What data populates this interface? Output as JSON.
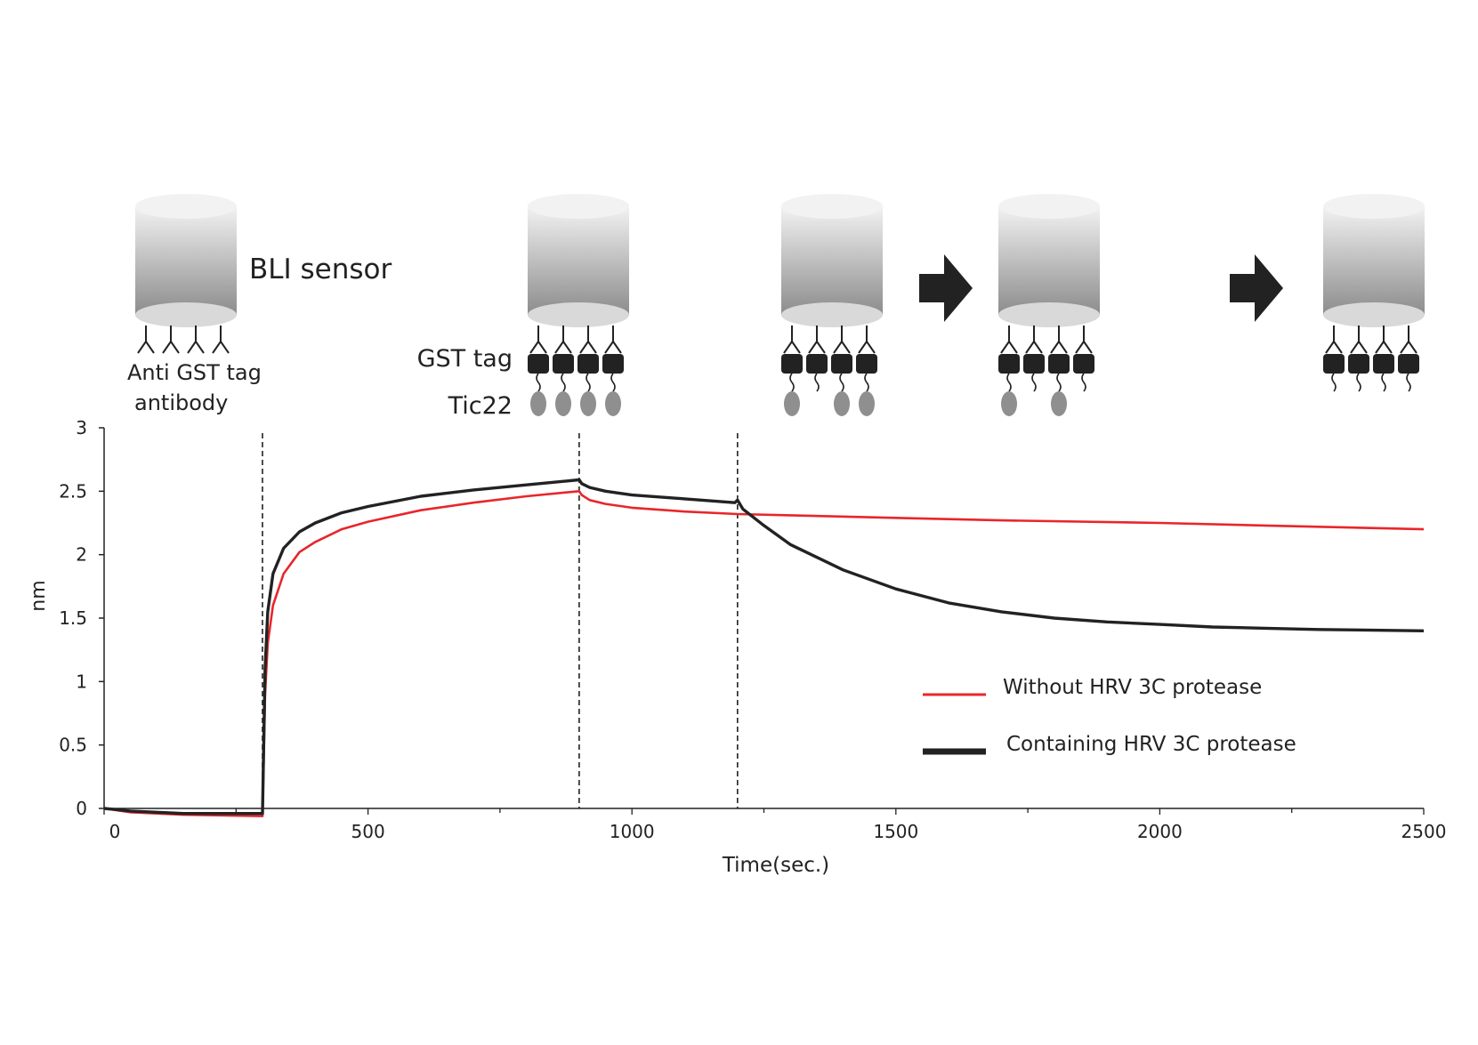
{
  "schematic": {
    "sensor_label": "BLI sensor",
    "antibody_label_line1": "Anti GST tag",
    "antibody_label_line2": "antibody",
    "gst_label": "GST tag",
    "tic22_label": "Tic22",
    "stages": [
      {
        "gst": false,
        "tic22": [
          false,
          false,
          false,
          false
        ]
      },
      {
        "gst": true,
        "tic22": [
          true,
          true,
          true,
          true
        ]
      },
      {
        "gst": true,
        "tic22": [
          true,
          false,
          true,
          true
        ]
      },
      {
        "gst": true,
        "tic22": [
          true,
          false,
          true,
          false
        ]
      },
      {
        "gst": true,
        "tic22": [
          false,
          false,
          false,
          false
        ]
      }
    ],
    "arrow_count": 2
  },
  "colors": {
    "red_series": "#e8262b",
    "black_series": "#222222",
    "sensor_top": "#f2f2f2",
    "sensor_bottom": "#8c8c8c",
    "tic22": "#8f8f8f",
    "gst": "#222222"
  },
  "chart_data": {
    "type": "line",
    "title": "",
    "xlabel": "Time(sec.)",
    "ylabel": "nm",
    "xlim": [
      0,
      2500
    ],
    "ylim": [
      0,
      3
    ],
    "x_ticks": [
      0,
      500,
      1000,
      1500,
      2000,
      2500
    ],
    "y_ticks": [
      0,
      0.5,
      1,
      1.5,
      2,
      2.5,
      3
    ],
    "y_tick_labels": [
      "0",
      "0.5",
      "1",
      "1.5",
      "2",
      "2.5",
      "3"
    ],
    "vertical_dashed_lines_x": [
      300,
      900,
      1200
    ],
    "legend_position": "lower-right",
    "series": [
      {
        "name": "Without HRV 3C protease",
        "color": "#e8262b",
        "x": [
          0,
          50,
          150,
          295,
          300,
          302,
          305,
          310,
          320,
          340,
          370,
          400,
          450,
          500,
          600,
          700,
          800,
          900,
          905,
          920,
          950,
          1000,
          1100,
          1200,
          1300,
          1500,
          1700,
          2000,
          2200,
          2500
        ],
        "y": [
          0,
          -0.03,
          -0.05,
          -0.06,
          -0.06,
          0.3,
          0.9,
          1.3,
          1.6,
          1.85,
          2.02,
          2.1,
          2.2,
          2.26,
          2.35,
          2.41,
          2.46,
          2.5,
          2.47,
          2.43,
          2.4,
          2.37,
          2.34,
          2.32,
          2.31,
          2.29,
          2.27,
          2.25,
          2.23,
          2.2
        ]
      },
      {
        "name": "Containing HRV 3C protease",
        "color": "#222222",
        "x": [
          0,
          50,
          150,
          295,
          300,
          302,
          305,
          310,
          320,
          340,
          370,
          400,
          450,
          500,
          600,
          700,
          800,
          900,
          905,
          920,
          950,
          1000,
          1100,
          1195,
          1200,
          1210,
          1250,
          1300,
          1400,
          1500,
          1600,
          1700,
          1800,
          1900,
          2000,
          2100,
          2200,
          2300,
          2500
        ],
        "y": [
          0,
          -0.02,
          -0.04,
          -0.04,
          -0.04,
          0.4,
          1.1,
          1.55,
          1.85,
          2.05,
          2.18,
          2.25,
          2.33,
          2.38,
          2.46,
          2.51,
          2.55,
          2.59,
          2.56,
          2.53,
          2.5,
          2.47,
          2.44,
          2.41,
          2.43,
          2.36,
          2.23,
          2.08,
          1.88,
          1.73,
          1.62,
          1.55,
          1.5,
          1.47,
          1.45,
          1.43,
          1.42,
          1.41,
          1.4
        ]
      }
    ]
  }
}
